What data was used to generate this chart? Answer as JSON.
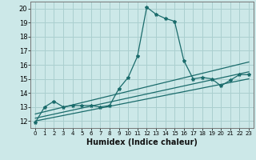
{
  "xlabel": "Humidex (Indice chaleur)",
  "xlim": [
    -0.5,
    23.5
  ],
  "ylim": [
    11.5,
    20.5
  ],
  "xticks": [
    0,
    1,
    2,
    3,
    4,
    5,
    6,
    7,
    8,
    9,
    10,
    11,
    12,
    13,
    14,
    15,
    16,
    17,
    18,
    19,
    20,
    21,
    22,
    23
  ],
  "yticks": [
    12,
    13,
    14,
    15,
    16,
    17,
    18,
    19,
    20
  ],
  "background_color": "#cce8e8",
  "grid_color": "#aacfcf",
  "line_color": "#1a6b6b",
  "lines": [
    {
      "x": [
        0,
        1,
        2,
        3,
        4,
        5,
        6,
        7,
        8,
        9,
        10,
        11,
        12,
        13,
        14,
        15,
        16,
        17,
        18,
        19,
        20,
        21,
        22,
        23
      ],
      "y": [
        11.9,
        13.0,
        13.4,
        13.0,
        13.1,
        13.1,
        13.1,
        13.0,
        13.1,
        14.3,
        15.1,
        16.6,
        20.1,
        19.6,
        19.3,
        19.1,
        16.3,
        15.0,
        15.1,
        15.0,
        14.5,
        14.9,
        15.3,
        15.3
      ]
    },
    {
      "x": [
        0,
        23
      ],
      "y": [
        12.5,
        16.2
      ]
    },
    {
      "x": [
        0,
        23
      ],
      "y": [
        12.2,
        15.5
      ]
    },
    {
      "x": [
        0,
        23
      ],
      "y": [
        12.0,
        15.0
      ]
    }
  ]
}
